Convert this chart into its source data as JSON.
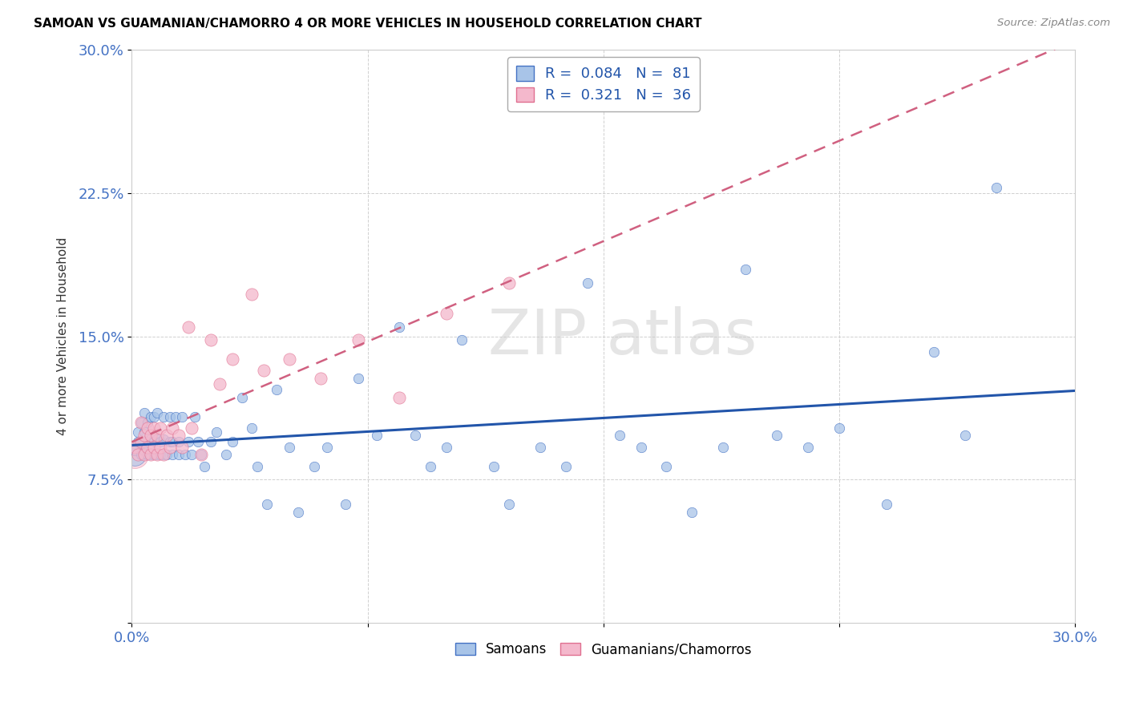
{
  "title": "SAMOAN VS GUAMANIAN/CHAMORRO 4 OR MORE VEHICLES IN HOUSEHOLD CORRELATION CHART",
  "source": "Source: ZipAtlas.com",
  "ylabel": "4 or more Vehicles in Household",
  "xlim": [
    0.0,
    0.3
  ],
  "ylim": [
    0.0,
    0.3
  ],
  "x_ticks": [
    0.0,
    0.075,
    0.15,
    0.225,
    0.3
  ],
  "y_ticks": [
    0.0,
    0.075,
    0.15,
    0.225,
    0.3
  ],
  "legend1_R": "0.084",
  "legend1_N": "81",
  "legend2_R": "0.321",
  "legend2_N": "36",
  "blue_fill": "#a8c4e8",
  "blue_edge": "#4472c4",
  "pink_fill": "#f4b8cc",
  "pink_edge": "#e07090",
  "blue_line_color": "#2255aa",
  "pink_line_color": "#d06080",
  "tick_color": "#4472c4",
  "samoan_x": [
    0.001,
    0.002,
    0.002,
    0.003,
    0.003,
    0.003,
    0.004,
    0.004,
    0.004,
    0.005,
    0.005,
    0.005,
    0.006,
    0.006,
    0.006,
    0.007,
    0.007,
    0.007,
    0.008,
    0.008,
    0.008,
    0.009,
    0.009,
    0.01,
    0.01,
    0.01,
    0.011,
    0.012,
    0.012,
    0.013,
    0.013,
    0.014,
    0.015,
    0.015,
    0.016,
    0.017,
    0.018,
    0.019,
    0.02,
    0.021,
    0.022,
    0.023,
    0.025,
    0.027,
    0.03,
    0.032,
    0.035,
    0.038,
    0.04,
    0.043,
    0.046,
    0.05,
    0.053,
    0.058,
    0.062,
    0.068,
    0.072,
    0.078,
    0.085,
    0.09,
    0.095,
    0.1,
    0.105,
    0.115,
    0.12,
    0.13,
    0.138,
    0.145,
    0.155,
    0.162,
    0.17,
    0.178,
    0.188,
    0.195,
    0.205,
    0.215,
    0.225,
    0.24,
    0.255,
    0.265,
    0.275
  ],
  "samoan_y": [
    0.09,
    0.095,
    0.1,
    0.088,
    0.095,
    0.105,
    0.09,
    0.1,
    0.11,
    0.088,
    0.095,
    0.105,
    0.088,
    0.096,
    0.108,
    0.088,
    0.095,
    0.108,
    0.088,
    0.096,
    0.11,
    0.088,
    0.095,
    0.088,
    0.096,
    0.108,
    0.088,
    0.095,
    0.108,
    0.088,
    0.095,
    0.108,
    0.088,
    0.095,
    0.108,
    0.088,
    0.095,
    0.088,
    0.108,
    0.095,
    0.088,
    0.082,
    0.095,
    0.1,
    0.088,
    0.095,
    0.118,
    0.102,
    0.082,
    0.062,
    0.122,
    0.092,
    0.058,
    0.082,
    0.092,
    0.062,
    0.128,
    0.098,
    0.155,
    0.098,
    0.082,
    0.092,
    0.148,
    0.082,
    0.062,
    0.092,
    0.082,
    0.178,
    0.098,
    0.092,
    0.082,
    0.058,
    0.092,
    0.185,
    0.098,
    0.092,
    0.102,
    0.062,
    0.142,
    0.098,
    0.228
  ],
  "guam_x": [
    0.001,
    0.002,
    0.003,
    0.003,
    0.004,
    0.004,
    0.005,
    0.005,
    0.006,
    0.006,
    0.007,
    0.007,
    0.008,
    0.008,
    0.009,
    0.009,
    0.01,
    0.011,
    0.012,
    0.013,
    0.015,
    0.016,
    0.018,
    0.019,
    0.022,
    0.025,
    0.028,
    0.032,
    0.038,
    0.042,
    0.05,
    0.06,
    0.072,
    0.085,
    0.1,
    0.12
  ],
  "guam_y": [
    0.092,
    0.088,
    0.095,
    0.105,
    0.088,
    0.098,
    0.092,
    0.102,
    0.088,
    0.098,
    0.092,
    0.102,
    0.088,
    0.098,
    0.092,
    0.102,
    0.088,
    0.098,
    0.092,
    0.102,
    0.098,
    0.092,
    0.155,
    0.102,
    0.088,
    0.148,
    0.125,
    0.138,
    0.172,
    0.132,
    0.138,
    0.128,
    0.148,
    0.118,
    0.162,
    0.178
  ],
  "samoan_dot_size": 80,
  "guam_dot_size": 120,
  "large_dot_size": 400
}
